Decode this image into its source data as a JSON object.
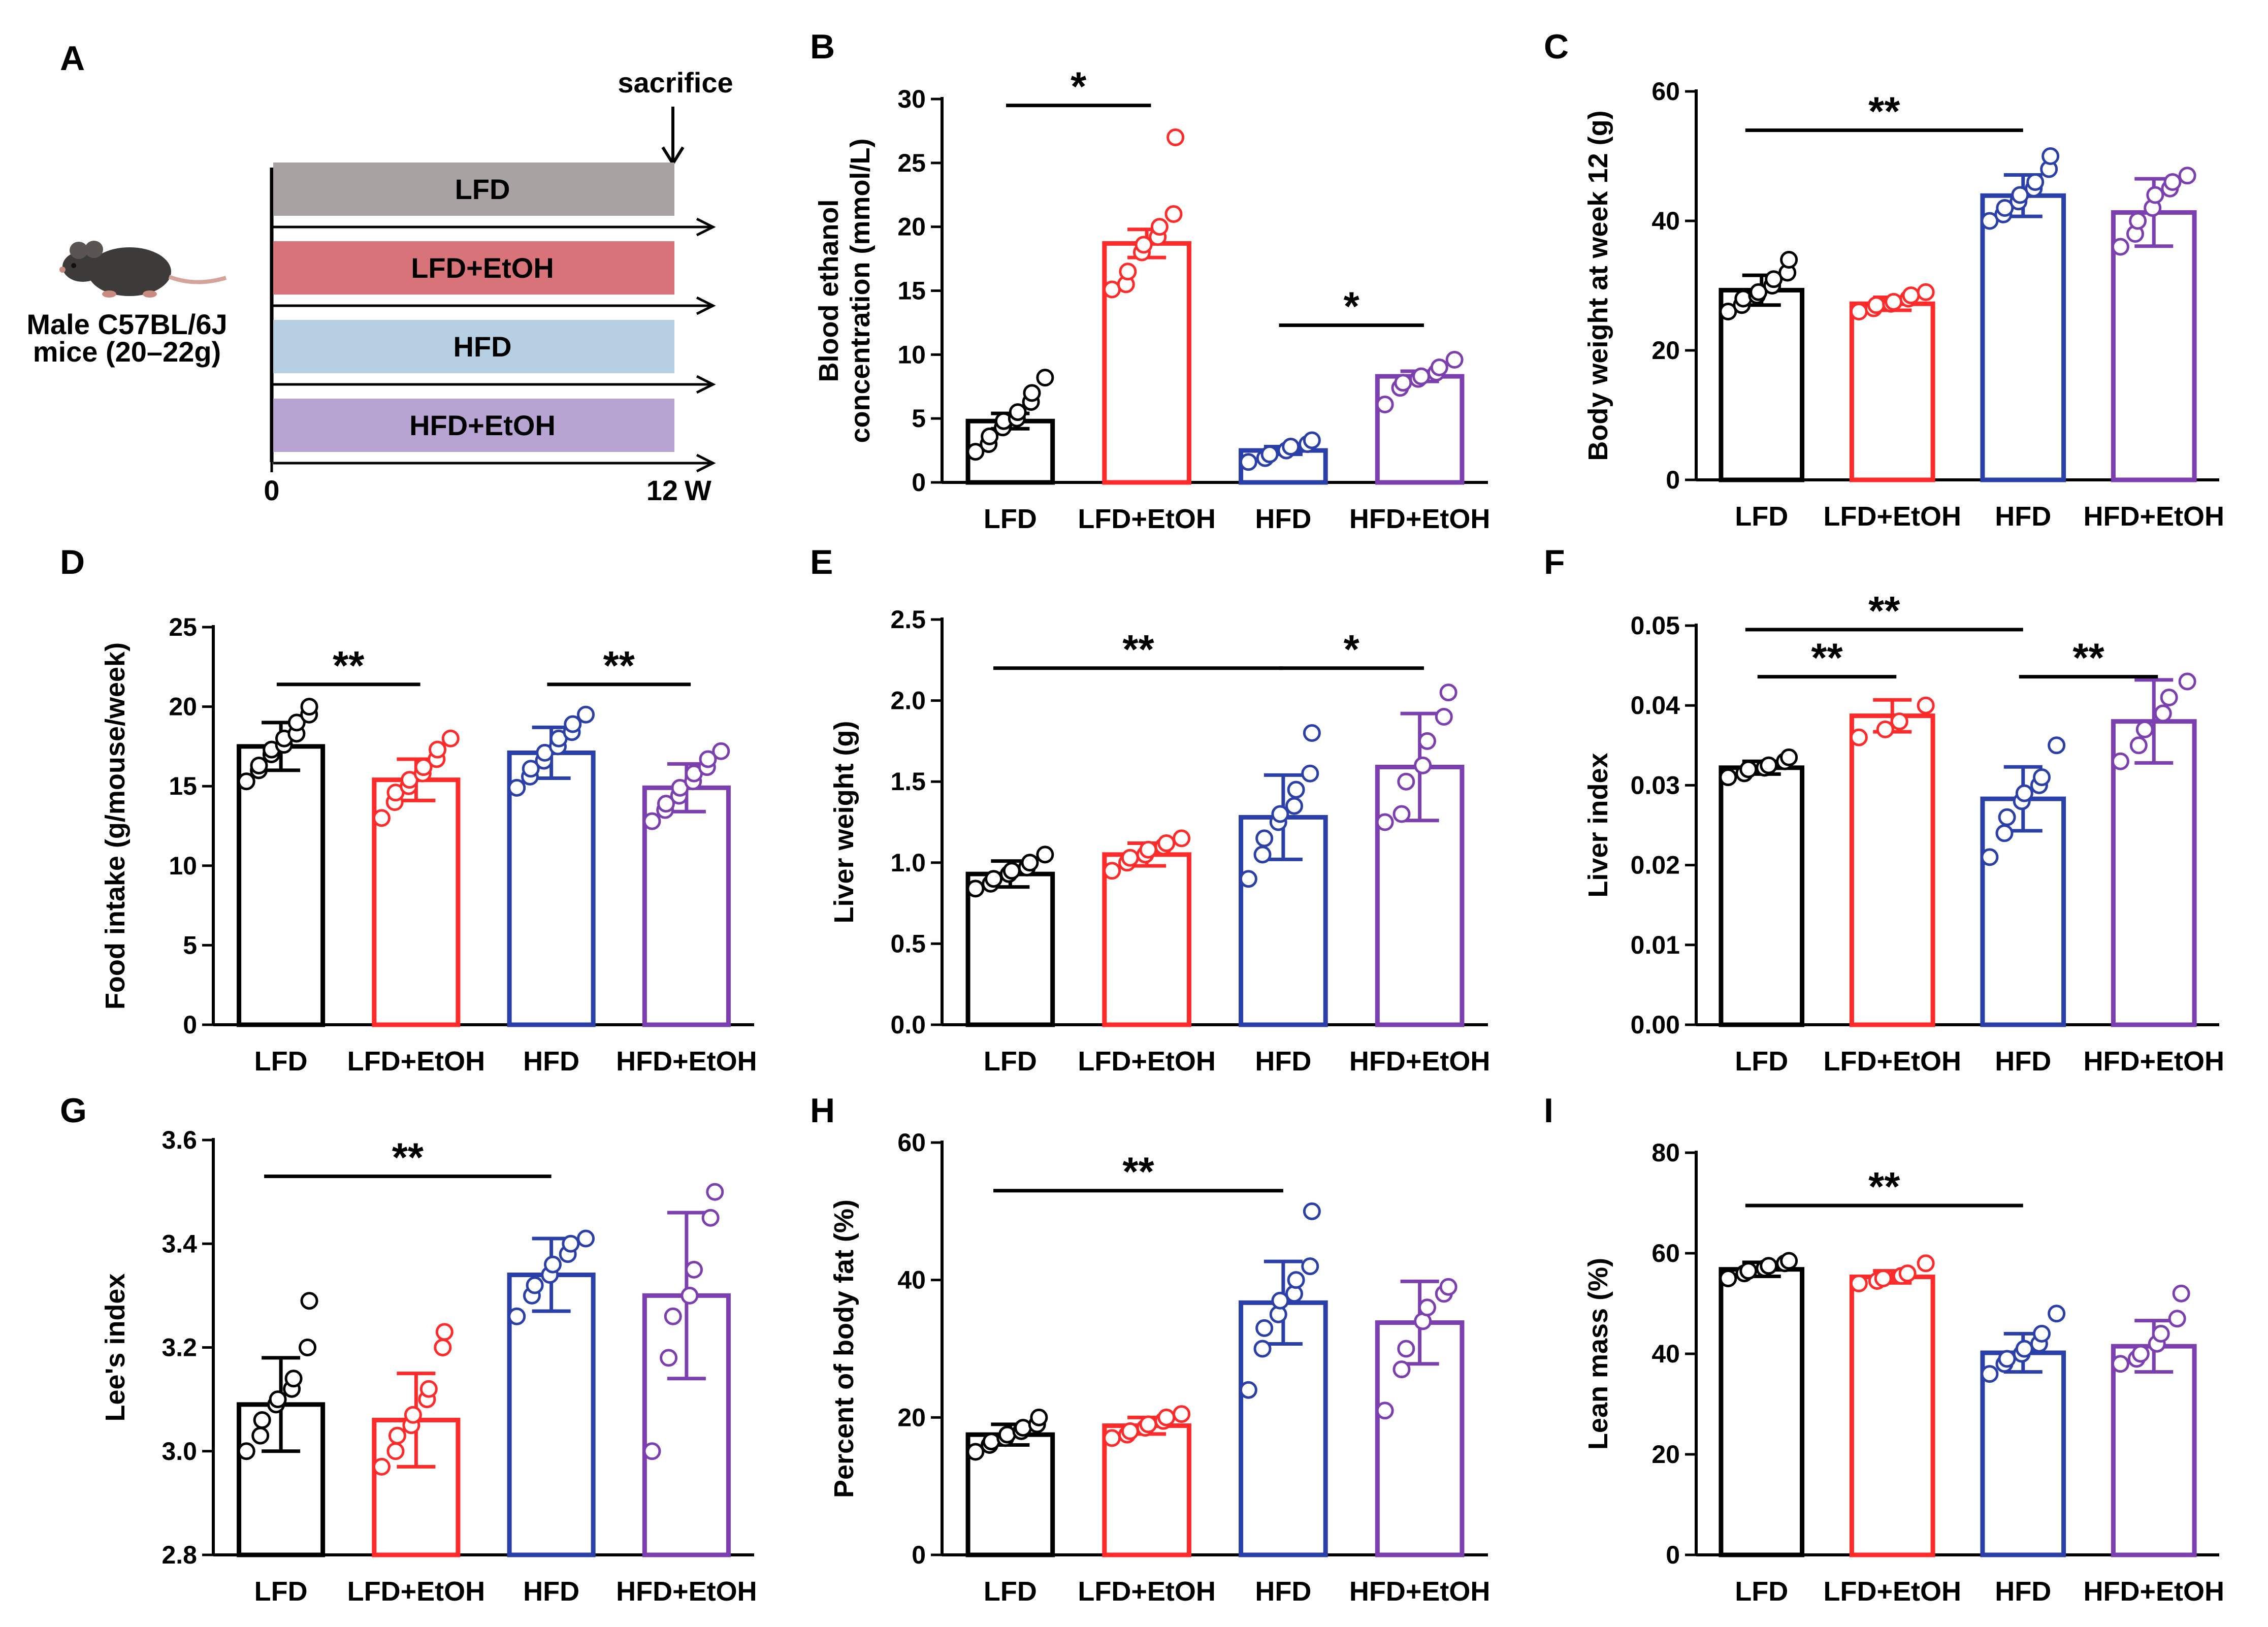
{
  "colors": {
    "LFD": "#000000",
    "LFD+EtOH": "#ff2a2a",
    "HFD": "#2b3fa8",
    "HFD+EtOH": "#7b3fb0",
    "bar_LFD": "#a8a2a2",
    "bar_LFD_EtOH": "#d9737a",
    "bar_HFD": "#b7cfe2",
    "bar_HFD_EtOH": "#b8a4d2"
  },
  "diagram": {
    "label": "A",
    "sacrifice": "sacrifice",
    "mouse_line1": "Male C57BL/6J",
    "mouse_line2": "mice (20–22g)",
    "bars": [
      "LFD",
      "LFD+EtOH",
      "HFD",
      "HFD+EtOH"
    ],
    "start": "0",
    "end": "12",
    "end_unit": "W",
    "icon": "mouse-icon"
  },
  "chart_data": [
    {
      "panel": "B",
      "type": "bar",
      "ylabel": "Blood ethanol concentration (mmol/L)",
      "ylabel_lines": [
        "Blood ethanol",
        "concentration (mmol/L)"
      ],
      "categories": [
        "LFD",
        "LFD+EtOH",
        "HFD",
        "HFD+EtOH"
      ],
      "ylim": [
        0,
        30
      ],
      "yticks": [
        "0",
        "5",
        "10",
        "15",
        "20",
        "25",
        "30"
      ],
      "ytick_values": [
        0,
        5,
        10,
        15,
        20,
        25,
        30
      ],
      "values": [
        4.8,
        18.7,
        2.5,
        8.3
      ],
      "err": [
        0.6,
        1.1,
        0.3,
        0.4
      ],
      "points": [
        [
          2.4,
          3.0,
          3.6,
          4.3,
          4.8,
          5.0,
          5.5,
          6.3,
          7.0,
          8.2
        ],
        [
          15.1,
          15.5,
          16.5,
          18.0,
          18.6,
          19.2,
          20.0,
          21.0,
          27.0
        ],
        [
          1.6,
          1.9,
          2.2,
          2.5,
          2.8,
          3.0,
          3.3
        ],
        [
          6.1,
          7.4,
          7.8,
          8.1,
          8.3,
          8.6,
          9.0,
          9.6
        ]
      ],
      "sig": [
        {
          "from": 0,
          "to": 1,
          "y": 29.5,
          "text": "*"
        },
        {
          "from": 2,
          "to": 3,
          "y": 12.3,
          "text": "*"
        }
      ]
    },
    {
      "panel": "C",
      "type": "bar",
      "ylabel": "Body weight at week 12 (g)",
      "ylabel_lines": [
        "Body weight at week 12 (g)"
      ],
      "categories": [
        "LFD",
        "LFD+EtOH",
        "HFD",
        "HFD+EtOH"
      ],
      "ylim": [
        0,
        60
      ],
      "yticks": [
        "0",
        "20",
        "40",
        "60"
      ],
      "ytick_values": [
        0,
        20,
        40,
        60
      ],
      "values": [
        29.3,
        27.2,
        43.9,
        41.3
      ],
      "err": [
        2.3,
        1.0,
        3.2,
        5.2
      ],
      "points": [
        [
          26,
          27,
          28,
          28.5,
          29,
          30,
          31,
          32,
          34
        ],
        [
          26,
          26.5,
          27,
          27.2,
          27.5,
          28,
          28.5,
          29
        ],
        [
          40,
          41,
          42,
          43,
          44,
          45,
          46,
          48,
          50
        ],
        [
          36,
          38,
          40,
          42,
          44,
          45,
          46,
          47
        ]
      ],
      "sig": [
        {
          "from": 0,
          "to": 2,
          "y": 54,
          "text": "**"
        }
      ]
    },
    {
      "panel": "D",
      "type": "bar",
      "ylabel": "Food intake (g/mouse/week)",
      "ylabel_lines": [
        "Food intake (g/mouse/week)"
      ],
      "categories": [
        "LFD",
        "LFD+EtOH",
        "HFD",
        "HFD+EtOH"
      ],
      "ylim": [
        0,
        25
      ],
      "yticks": [
        "0",
        "5",
        "10",
        "15",
        "20",
        "25"
      ],
      "ytick_values": [
        0,
        5,
        10,
        15,
        20,
        25
      ],
      "values": [
        17.5,
        15.4,
        17.1,
        14.9
      ],
      "err": [
        1.5,
        1.3,
        1.6,
        1.5
      ],
      "points": [
        [
          15.3,
          16.0,
          16.3,
          17.0,
          17.3,
          17.6,
          18.0,
          18.3,
          19.0,
          19.5,
          20.0
        ],
        [
          13.0,
          14.0,
          14.6,
          15.0,
          15.4,
          15.8,
          16.2,
          16.7,
          17.3,
          18.0
        ],
        [
          14.9,
          15.6,
          16.1,
          16.6,
          17.1,
          17.5,
          18.0,
          18.4,
          18.9,
          19.5
        ],
        [
          12.8,
          13.5,
          13.9,
          14.4,
          14.9,
          15.3,
          15.8,
          16.2,
          16.7,
          17.2
        ]
      ],
      "sig": [
        {
          "from": 0,
          "to": 1,
          "y": 21.4,
          "text": "**"
        },
        {
          "from": 2,
          "to": 3,
          "y": 21.4,
          "text": "**"
        }
      ]
    },
    {
      "panel": "E",
      "type": "bar",
      "ylabel": "Liver weight (g)",
      "ylabel_lines": [
        "Liver weight (g)"
      ],
      "categories": [
        "LFD",
        "LFD+EtOH",
        "HFD",
        "HFD+EtOH"
      ],
      "ylim": [
        0,
        2.5
      ],
      "yticks": [
        "0.0",
        "0.5",
        "1.0",
        "1.5",
        "2.0",
        "2.5"
      ],
      "ytick_values": [
        0,
        0.5,
        1,
        1.5,
        2,
        2.5
      ],
      "values": [
        0.93,
        1.05,
        1.28,
        1.59
      ],
      "err": [
        0.08,
        0.07,
        0.26,
        0.33
      ],
      "points": [
        [
          0.84,
          0.87,
          0.9,
          0.93,
          0.95,
          0.97,
          1.0,
          1.05
        ],
        [
          0.95,
          1.0,
          1.03,
          1.05,
          1.08,
          1.1,
          1.12,
          1.15
        ],
        [
          0.9,
          1.05,
          1.15,
          1.25,
          1.3,
          1.35,
          1.45,
          1.55,
          1.8
        ],
        [
          1.25,
          1.3,
          1.5,
          1.6,
          1.75,
          1.9,
          2.05
        ]
      ],
      "sig": [
        {
          "from": 0,
          "to": 2,
          "y": 2.2,
          "text": "**"
        },
        {
          "from": 2,
          "to": 3,
          "y": 2.2,
          "text": "*"
        }
      ]
    },
    {
      "panel": "F",
      "type": "bar",
      "ylabel": "Liver index",
      "ylabel_lines": [
        "Liver index"
      ],
      "categories": [
        "LFD",
        "LFD+EtOH",
        "HFD",
        "HFD+EtOH"
      ],
      "ylim": [
        0,
        0.05
      ],
      "yticks": [
        "0.00",
        "0.01",
        "0.02",
        "0.03",
        "0.04",
        "0.05"
      ],
      "ytick_values": [
        0,
        0.01,
        0.02,
        0.03,
        0.04,
        0.05
      ],
      "values": [
        0.0322,
        0.0387,
        0.0283,
        0.038
      ],
      "err": [
        0.0008,
        0.002,
        0.004,
        0.0052
      ],
      "points": [
        [
          0.031,
          0.0315,
          0.032,
          0.0322,
          0.0325,
          0.033,
          0.0335
        ],
        [
          0.036,
          0.037,
          0.038,
          0.04
        ],
        [
          0.021,
          0.024,
          0.026,
          0.028,
          0.029,
          0.03,
          0.031,
          0.035
        ],
        [
          0.033,
          0.035,
          0.037,
          0.039,
          0.041,
          0.043
        ]
      ],
      "sig": [
        {
          "from": 0,
          "to": 1,
          "y": 0.0436,
          "text": "**"
        },
        {
          "from": 0,
          "to": 2,
          "y": 0.0495,
          "text": "**"
        },
        {
          "from": 2,
          "to": 3,
          "y": 0.0436,
          "text": "**"
        }
      ]
    },
    {
      "panel": "G",
      "type": "bar",
      "ylabel": "Lee's index",
      "ylabel_lines": [
        "Lee's index"
      ],
      "categories": [
        "LFD",
        "LFD+EtOH",
        "HFD",
        "HFD+EtOH"
      ],
      "ylim": [
        2.8,
        3.6
      ],
      "yticks": [
        "2.8",
        "3.0",
        "3.2",
        "3.4",
        "3.6"
      ],
      "ytick_values": [
        2.8,
        3.0,
        3.2,
        3.4,
        3.6
      ],
      "values": [
        3.09,
        3.06,
        3.34,
        3.3
      ],
      "err": [
        0.09,
        0.09,
        0.07,
        0.16
      ],
      "points": [
        [
          3.0,
          3.03,
          3.06,
          3.09,
          3.1,
          3.12,
          3.14,
          3.2,
          3.29
        ],
        [
          2.97,
          3.0,
          3.03,
          3.05,
          3.07,
          3.1,
          3.12,
          3.2,
          3.23
        ],
        [
          3.26,
          3.3,
          3.32,
          3.34,
          3.36,
          3.38,
          3.4,
          3.41
        ],
        [
          3.0,
          3.18,
          3.26,
          3.3,
          3.35,
          3.45,
          3.5
        ]
      ],
      "sig": [
        {
          "from": 0,
          "to": 2,
          "y": 3.53,
          "text": "**"
        }
      ]
    },
    {
      "panel": "H",
      "type": "bar",
      "ylabel": "Percent of body fat (%)",
      "ylabel_lines": [
        "Percent of body fat (%)"
      ],
      "categories": [
        "LFD",
        "LFD+EtOH",
        "HFD",
        "HFD+EtOH"
      ],
      "ylim": [
        0,
        60
      ],
      "yticks": [
        "0",
        "20",
        "40",
        "60"
      ],
      "ytick_values": [
        0,
        20,
        40,
        60
      ],
      "values": [
        17.5,
        18.8,
        36.7,
        33.8
      ],
      "err": [
        1.5,
        1.2,
        6.0,
        6.0
      ],
      "points": [
        [
          15,
          16,
          16.5,
          17,
          17.5,
          18,
          18.5,
          19,
          20
        ],
        [
          17,
          17.5,
          18,
          18.5,
          19,
          19.5,
          20,
          20.5
        ],
        [
          24,
          30,
          33,
          35,
          37,
          38,
          40,
          42,
          50
        ],
        [
          21,
          27,
          30,
          34,
          36,
          38,
          39
        ]
      ],
      "sig": [
        {
          "from": 0,
          "to": 2,
          "y": 53,
          "text": "**"
        }
      ]
    },
    {
      "panel": "I",
      "type": "bar",
      "ylabel": "Lean mass (%)",
      "ylabel_lines": [
        "Lean mass (%)"
      ],
      "categories": [
        "LFD",
        "LFD+EtOH",
        "HFD",
        "HFD+EtOH"
      ],
      "ylim": [
        0,
        80
      ],
      "yticks": [
        "0",
        "20",
        "40",
        "60",
        "80"
      ],
      "ytick_values": [
        0,
        20,
        40,
        60,
        80
      ],
      "values": [
        56.8,
        55.3,
        40.2,
        41.5
      ],
      "err": [
        1.4,
        1.2,
        3.8,
        5.1
      ],
      "points": [
        [
          55,
          56,
          56.5,
          57,
          57.5,
          58,
          58.5
        ],
        [
          54,
          54.5,
          55,
          55.5,
          56,
          58
        ],
        [
          36,
          38,
          39,
          40,
          41,
          42,
          44,
          48
        ],
        [
          38,
          39,
          40,
          42,
          44,
          47,
          52
        ]
      ],
      "sig": [
        {
          "from": 0,
          "to": 2,
          "y": 69.5,
          "text": "**"
        }
      ]
    }
  ]
}
